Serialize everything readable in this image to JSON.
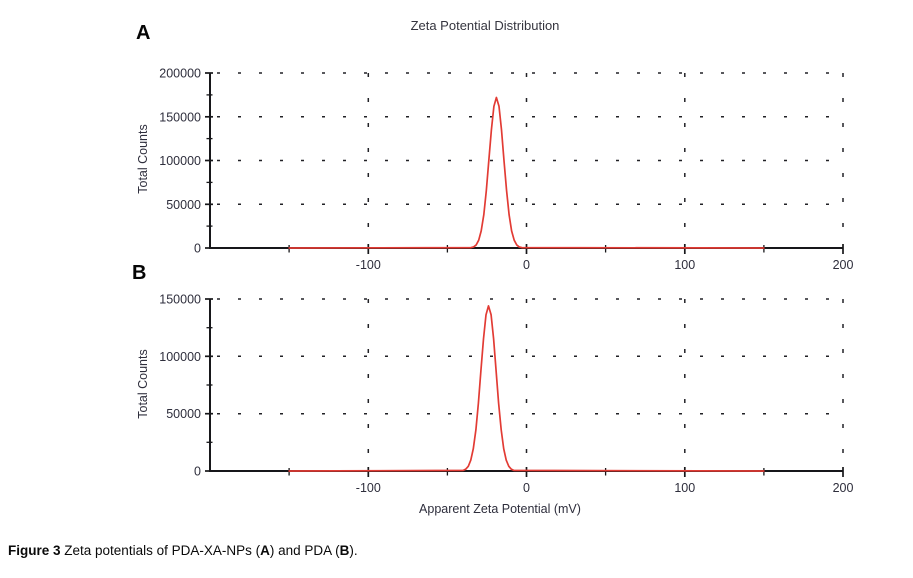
{
  "colors": {
    "curve": "#e23b34",
    "axis": "#17171a",
    "grid": "#212126",
    "text": "#2e2e3c"
  },
  "caption": {
    "fig": "Figure 3",
    "t1": " Zeta potentials of PDA-XA-NPs (",
    "a": "A",
    "t2": ") and PDA (",
    "b": "B",
    "t3": ")."
  },
  "chart_data": [
    {
      "type": "line",
      "panel": "A",
      "title": "Zeta Potential Distribution",
      "xlabel": "",
      "ylabel": "Total Counts",
      "xlim": [
        -200,
        200
      ],
      "ylim": [
        0,
        200000
      ],
      "xticks": [
        -100,
        0,
        100,
        200
      ],
      "minor_xticks": [
        -150,
        -50,
        50,
        150
      ],
      "yticks": [
        0,
        50000,
        100000,
        150000,
        200000
      ],
      "minor_ytick_step": 25000,
      "grid": "dashed",
      "legend": "none",
      "series": [
        {
          "name": "PDA-XA-NPs",
          "shape": "gaussian-peak",
          "peak_center_mV": -19,
          "peak_height_counts": 172000,
          "peak_sigma_mV": 4.6,
          "baseline_extent_mV": [
            -150,
            150
          ],
          "points": [
            [
              -150,
              0
            ],
            [
              -34,
              800
            ],
            [
              -29,
              16000
            ],
            [
              -24,
              95000
            ],
            [
              -19,
              172000
            ],
            [
              -14,
              95000
            ],
            [
              -9,
              16000
            ],
            [
              -4,
              800
            ],
            [
              150,
              0
            ]
          ]
        }
      ]
    },
    {
      "type": "line",
      "panel": "B",
      "title": "Zeta Potential Distribution",
      "xlabel": "Apparent Zeta Potential (mV)",
      "ylabel": "Total Counts",
      "xlim": [
        -200,
        200
      ],
      "ylim": [
        0,
        150000
      ],
      "xticks": [
        -100,
        0,
        100,
        200
      ],
      "minor_xticks": [
        -150,
        -50,
        50,
        150
      ],
      "yticks": [
        0,
        50000,
        100000,
        150000
      ],
      "minor_ytick_step": 25000,
      "grid": "dashed",
      "legend": "none",
      "series": [
        {
          "name": "PDA",
          "shape": "gaussian-peak",
          "peak_center_mV": -24,
          "peak_height_counts": 144000,
          "peak_sigma_mV": 4.8,
          "baseline_extent_mV": [
            -150,
            150
          ],
          "points": [
            [
              -150,
              0
            ],
            [
              -39,
              1100
            ],
            [
              -34,
              16400
            ],
            [
              -29,
              84000
            ],
            [
              -24,
              144000
            ],
            [
              -19,
              84000
            ],
            [
              -14,
              16400
            ],
            [
              -9,
              1100
            ],
            [
              150,
              0
            ]
          ]
        }
      ]
    }
  ]
}
